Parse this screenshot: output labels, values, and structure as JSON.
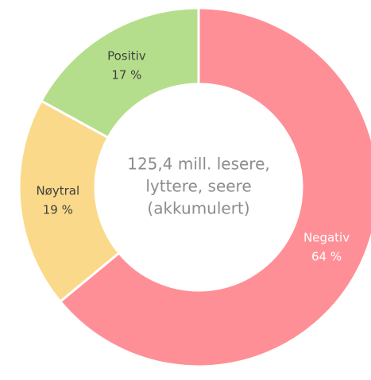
{
  "chart_data": {
    "type": "donut",
    "categories": [
      "Negativ",
      "Nøytral",
      "Positiv"
    ],
    "values": [
      64,
      19,
      17
    ],
    "value_labels": [
      "64 %",
      "19 %",
      "17 %"
    ],
    "colors": [
      "#ff8f96",
      "#fad98a",
      "#b5de8c"
    ],
    "label_colors": [
      "#ffffff",
      "#404040",
      "#404040"
    ],
    "center_text": [
      "125,4 mill. lesere,",
      "lyttere, seere",
      "(akkumulert)"
    ]
  }
}
